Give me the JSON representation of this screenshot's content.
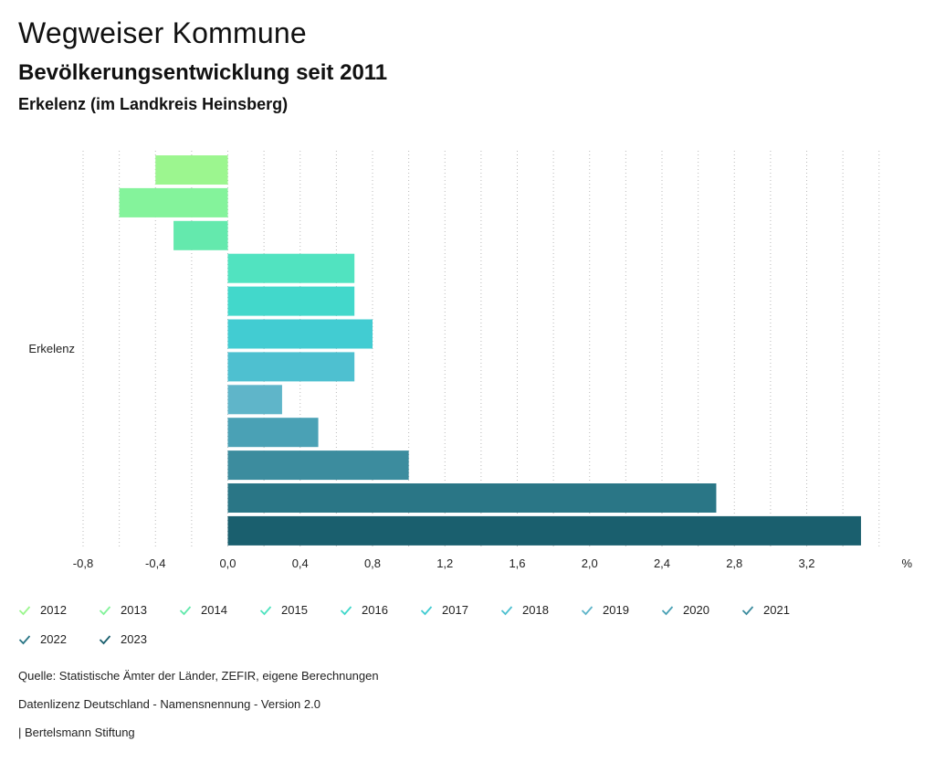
{
  "header": {
    "title": "Wegweiser Kommune",
    "subtitle": "Bevölkerungsentwicklung seit 2011",
    "region": "Erkelenz (im Landkreis Heinsberg)"
  },
  "chart_data": {
    "type": "bar",
    "orientation": "horizontal",
    "category": "Erkelenz",
    "unit": "%",
    "xlim": [
      -0.8,
      3.6
    ],
    "xticks": [
      "-0,8",
      "-0,4",
      "0,0",
      "0,4",
      "0,8",
      "1,2",
      "1,6",
      "2,0",
      "2,4",
      "2,8",
      "3,2"
    ],
    "xtick_values": [
      -0.8,
      -0.4,
      0.0,
      0.4,
      0.8,
      1.2,
      1.6,
      2.0,
      2.4,
      2.8,
      3.2
    ],
    "grid": "vertical dotted",
    "series": [
      {
        "name": "2012",
        "value": -0.4,
        "color": "#9cf68f"
      },
      {
        "name": "2013",
        "value": -0.6,
        "color": "#84f39b"
      },
      {
        "name": "2014",
        "value": -0.3,
        "color": "#64e9ad"
      },
      {
        "name": "2015",
        "value": 0.7,
        "color": "#51e3c0"
      },
      {
        "name": "2016",
        "value": 0.7,
        "color": "#42d8cb"
      },
      {
        "name": "2017",
        "value": 0.8,
        "color": "#42ccd2"
      },
      {
        "name": "2018",
        "value": 0.7,
        "color": "#4ec0d0"
      },
      {
        "name": "2019",
        "value": 0.3,
        "color": "#5fb5c9"
      },
      {
        "name": "2020",
        "value": 0.5,
        "color": "#4aa1b5"
      },
      {
        "name": "2021",
        "value": 1.0,
        "color": "#3c8c9e"
      },
      {
        "name": "2022",
        "value": 2.7,
        "color": "#2a7686"
      },
      {
        "name": "2023",
        "value": 3.5,
        "color": "#1a5f6e"
      }
    ]
  },
  "footer": {
    "source": "Quelle: Statistische Ämter der Länder, ZEFIR, eigene Berechnungen",
    "license": "Datenlizenz Deutschland - Namensnennung - Version 2.0",
    "publisher": "| Bertelsmann Stiftung"
  }
}
